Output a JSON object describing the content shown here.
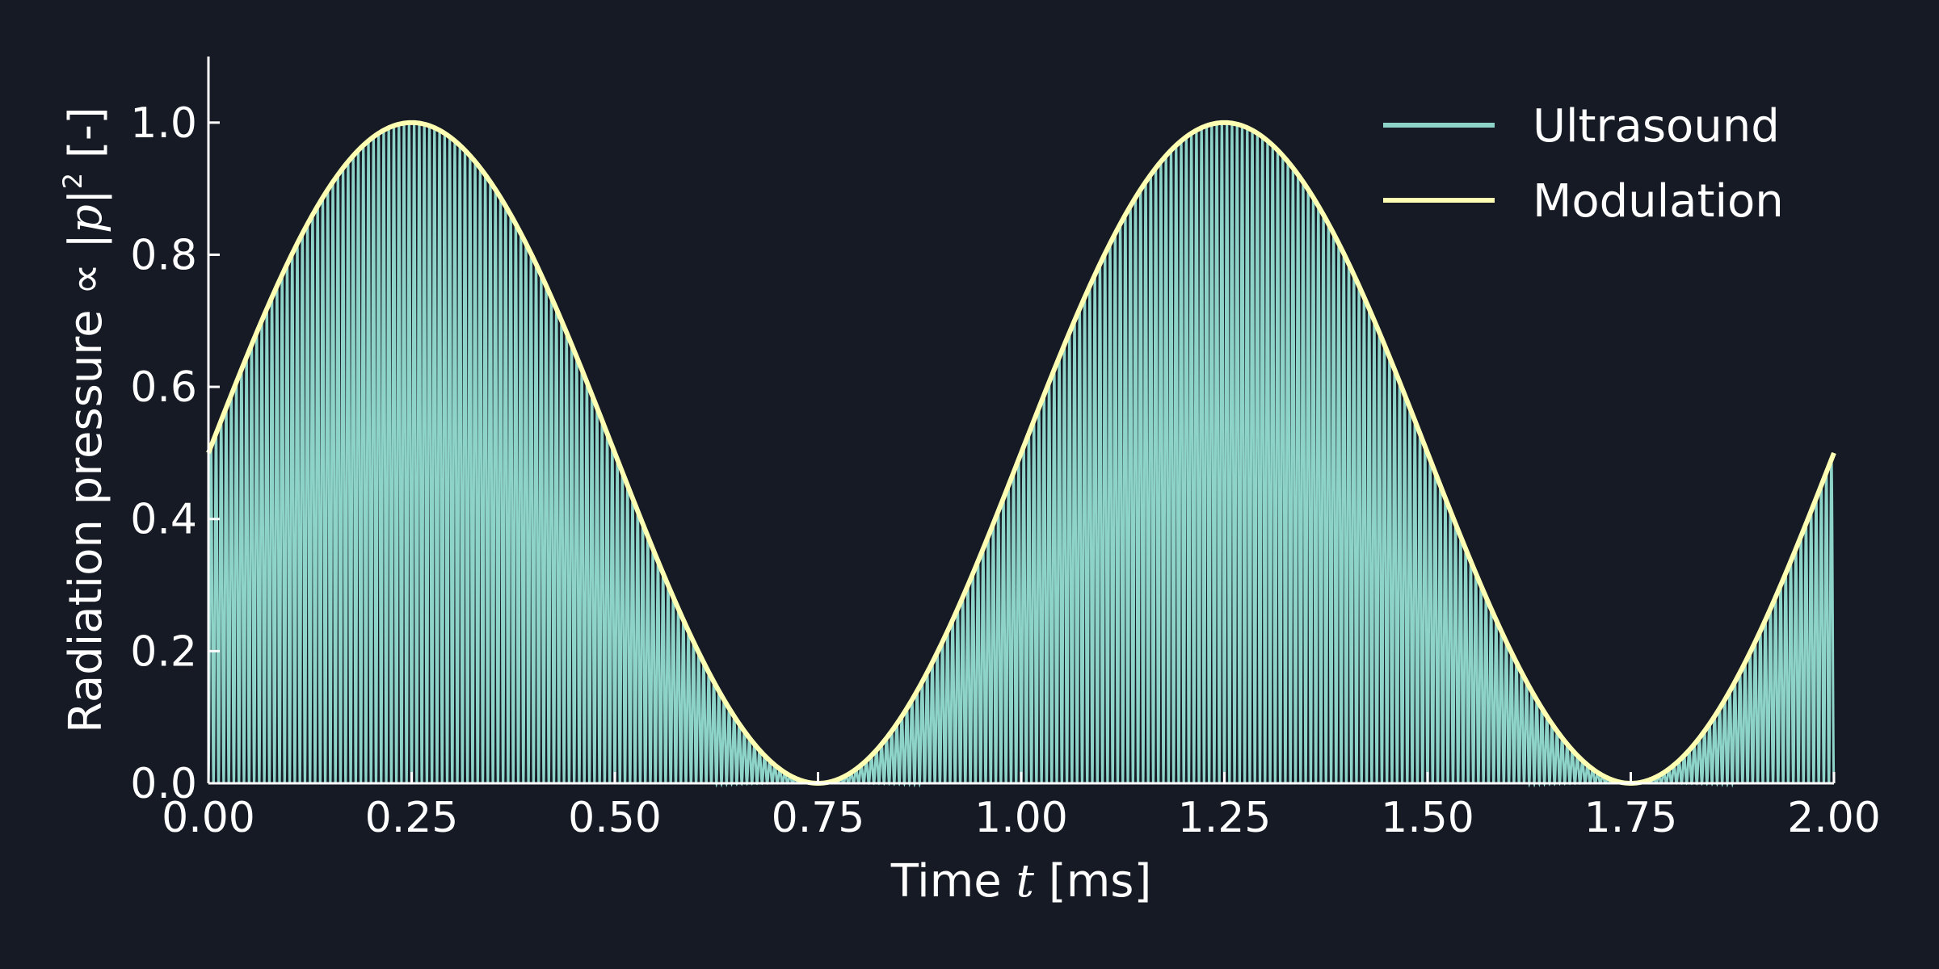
{
  "chart_data": {
    "type": "line",
    "title": "",
    "xlabel_prefix": "Time ",
    "xlabel_var": "t",
    "xlabel_unit": " [ms]",
    "ylabel_prefix": "Radiation pressure ∝ |",
    "ylabel_var": "p",
    "ylabel_suffix": "|",
    "ylabel_exp": "2",
    "ylabel_unit": " [-]",
    "xlim": [
      0,
      2
    ],
    "ylim": [
      0,
      1.1
    ],
    "xticks": [
      "0.00",
      "0.25",
      "0.50",
      "0.75",
      "1.00",
      "1.25",
      "1.50",
      "1.75",
      "2.00"
    ],
    "yticks": [
      "0.0",
      "0.2",
      "0.4",
      "0.6",
      "0.8",
      "1.0"
    ],
    "grid": false,
    "legend_position": "top-right",
    "series": [
      {
        "name": "Ultrasound",
        "color": "#8dd3c7",
        "description_values": {
          "carrier_periods_per_ms": 80,
          "envelope": "modulation"
        }
      },
      {
        "name": "Modulation",
        "color": "#ffffb3",
        "function": "0.5*(1+sin(2*pi*t))",
        "x": [
          0,
          0.25,
          0.5,
          0.75,
          1.0,
          1.25,
          1.5,
          1.75,
          2.0
        ],
        "values": [
          0.5,
          1.0,
          0.5,
          0.0,
          0.5,
          1.0,
          0.5,
          0.0,
          0.5
        ]
      }
    ]
  }
}
